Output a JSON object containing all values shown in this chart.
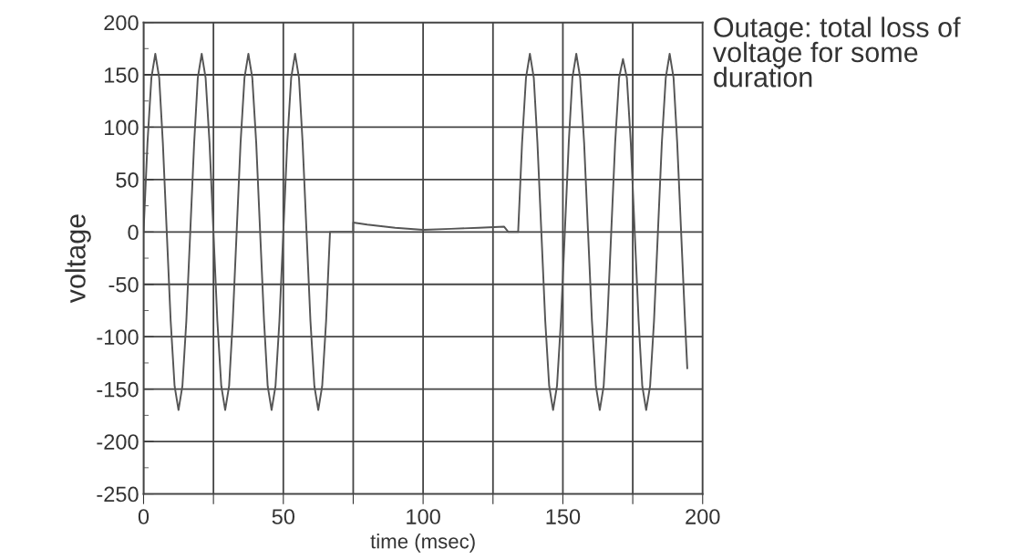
{
  "chart_data": {
    "type": "line",
    "xlabel": "time (msec)",
    "ylabel": "voltage",
    "annotations": [
      "Outage: total loss of voltage for some duration"
    ],
    "xlim": [
      0,
      200
    ],
    "xticks": [
      0,
      {
        "value": 25,
        "label": null
      },
      50,
      {
        "value": 75,
        "label": null
      },
      100,
      {
        "value": 125,
        "label": null
      },
      150,
      {
        "value": 175,
        "label": null
      },
      200
    ],
    "ylim": [
      -250,
      200
    ],
    "yticks": [
      -250,
      -200,
      -150,
      -100,
      -50,
      0,
      50,
      100,
      150,
      200
    ],
    "grid": true,
    "marker": "none",
    "line_style": "solid",
    "series": [
      {
        "color": "#555555",
        "x": [
          0,
          1.4,
          2.8,
          4.2,
          5.6,
          6.9,
          8.3,
          9.7,
          11.1,
          12.5,
          13.9,
          15.3,
          16.7,
          18.1,
          19.4,
          20.8,
          22.2,
          23.6,
          25,
          26.4,
          27.8,
          29.2,
          30.6,
          31.9,
          33.3,
          34.7,
          36.1,
          37.5,
          38.9,
          40.3,
          41.7,
          43.1,
          44.4,
          45.8,
          47.2,
          48.6,
          50,
          51.4,
          52.8,
          54.2,
          55.6,
          56.9,
          58.3,
          59.7,
          61.1,
          62.5,
          63.9,
          65.3,
          66.7,
          75,
          75,
          80,
          90,
          100,
          110,
          120,
          129,
          130.5,
          134,
          135.4,
          136.8,
          138.2,
          139.6,
          140.9,
          142.3,
          143.7,
          145.1,
          146.5,
          147.9,
          149.3,
          150.7,
          152.1,
          153.4,
          154.8,
          156.2,
          157.6,
          159,
          160.4,
          161.8,
          163.2,
          164.6,
          165.9,
          167.3,
          168.7,
          170.1,
          171.5,
          172.9,
          174.3,
          175.7,
          177.1,
          178.4,
          179.8,
          181.2,
          182.6,
          184,
          185.4,
          186.8,
          188.2,
          189.6,
          190.9,
          192.3,
          193.7,
          194.5
        ],
        "values": [
          0,
          85,
          147,
          170,
          147,
          85,
          0,
          -85,
          -147,
          -170,
          -147,
          -85,
          0,
          85,
          147,
          170,
          147,
          85,
          0,
          -85,
          -147,
          -170,
          -147,
          -85,
          0,
          85,
          147,
          170,
          147,
          85,
          0,
          -85,
          -147,
          -170,
          -147,
          -85,
          0,
          85,
          147,
          170,
          147,
          85,
          0,
          -85,
          -147,
          -170,
          -147,
          -85,
          0,
          0,
          9,
          7,
          4,
          2,
          3,
          4,
          5,
          0,
          0,
          85,
          147,
          170,
          147,
          85,
          0,
          -85,
          -147,
          -170,
          -147,
          -85,
          0,
          85,
          147,
          170,
          147,
          85,
          0,
          -85,
          -147,
          -170,
          -147,
          -85,
          0,
          85,
          147,
          165,
          147,
          85,
          0,
          -85,
          -147,
          -170,
          -147,
          -85,
          0,
          85,
          147,
          170,
          147,
          85,
          0,
          -85,
          -130
        ]
      }
    ]
  }
}
